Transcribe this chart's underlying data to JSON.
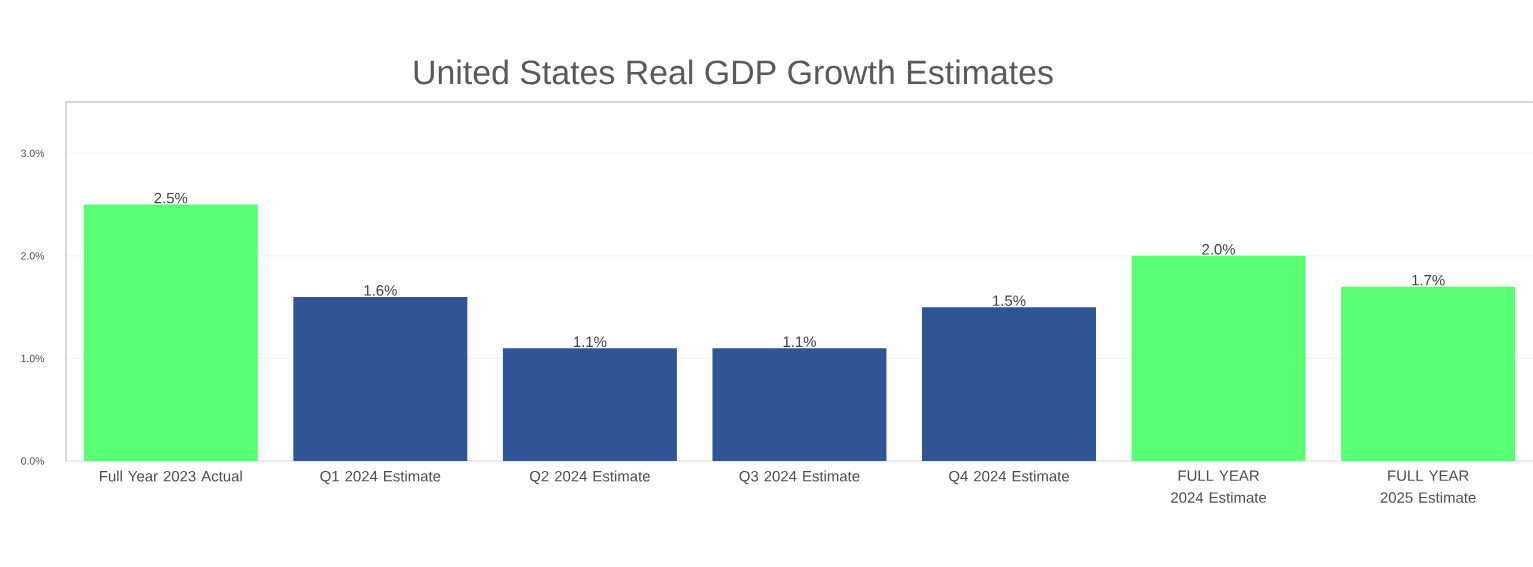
{
  "chart_data": {
    "type": "bar",
    "title": "United States Real GDP Growth Estimates",
    "categories": [
      "Full Year 2023 Actual",
      "Q1 2024 Estimate",
      "Q2 2024 Estimate",
      "Q3 2024 Estimate",
      "Q4 2024 Estimate",
      "FULL YEAR 2024 Estimate",
      "FULL YEAR 2025 Estimate"
    ],
    "values": [
      2.5,
      1.6,
      1.1,
      1.1,
      1.5,
      2.0,
      1.7
    ],
    "colors": [
      "#59ff73",
      "#2f5597",
      "#2f5597",
      "#2f5597",
      "#2f5597",
      "#59ff73",
      "#59ff73"
    ],
    "value_labels": [
      "2.5%",
      "1.6%",
      "1.1%",
      "1.1%",
      "1.5%",
      "2.0%",
      "1.7%"
    ],
    "ylim": [
      0,
      3.5
    ],
    "yticks": [
      {
        "value": 0,
        "label": "0.0%"
      },
      {
        "value": 1,
        "label": "1.0%"
      },
      {
        "value": 2,
        "label": "2.0%"
      },
      {
        "value": 3,
        "label": "3.0%"
      }
    ],
    "grid": "y"
  }
}
